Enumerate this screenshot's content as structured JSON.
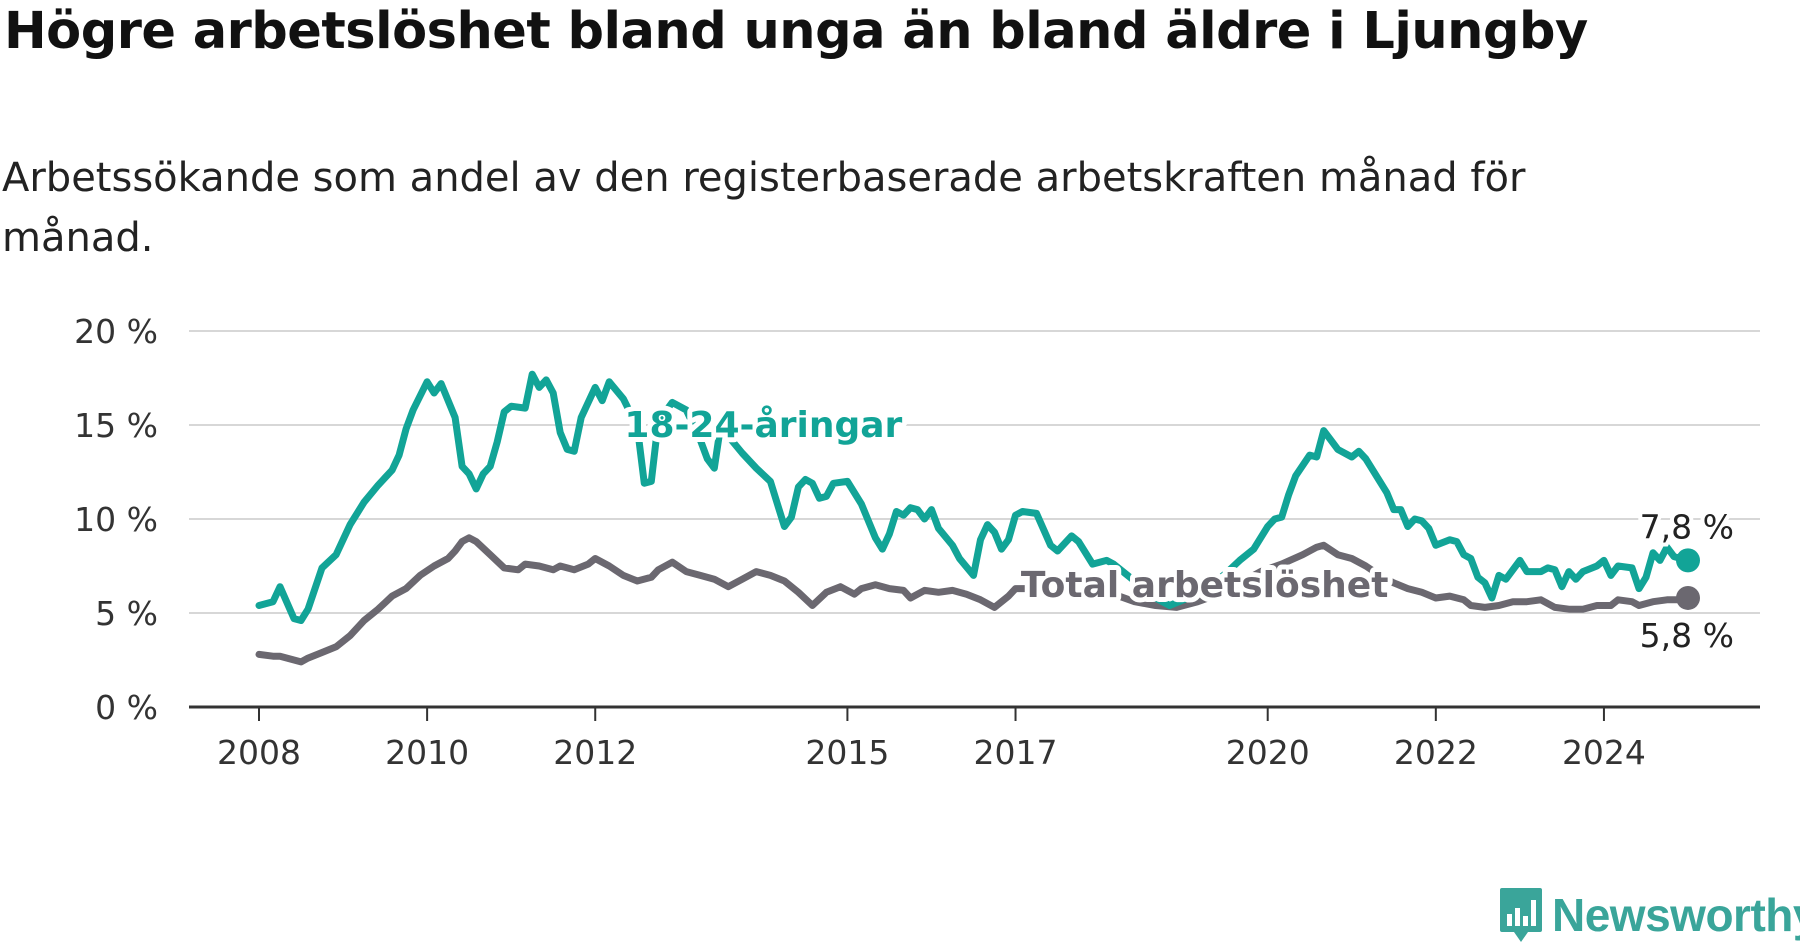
{
  "title": "Högre arbetslöshet bland unga än bland äldre i Ljungby",
  "subtitle": "Arbetssökande som andel av den registerbaserade arbetskraften månad för månad.",
  "logo_text": "Newsworthy",
  "colors": {
    "youth": "#12a497",
    "total": "#6b6870",
    "grid": "#d7d7d7",
    "axis": "#333333"
  },
  "chart_data": {
    "type": "line",
    "y_unit": "%",
    "ylim": [
      0,
      20
    ],
    "y_ticks": [
      0,
      5,
      10,
      15,
      20
    ],
    "y_tick_labels": [
      "0 %",
      "5 %",
      "10 %",
      "15 %",
      "20 %"
    ],
    "x_range": [
      "2008-01",
      "2025-01"
    ],
    "x_tick_labels": [
      "2008",
      "2010",
      "2012",
      "2015",
      "2017",
      "2020",
      "2022",
      "2024"
    ],
    "grid": true,
    "series": [
      {
        "name": "18-24-åringar",
        "end_label": "7,8 %",
        "points": [
          [
            "2008-01",
            5.4
          ],
          [
            "2008-03",
            5.6
          ],
          [
            "2008-04",
            6.4
          ],
          [
            "2008-06",
            4.7
          ],
          [
            "2008-07",
            4.6
          ],
          [
            "2008-08",
            5.2
          ],
          [
            "2008-10",
            7.4
          ],
          [
            "2008-12",
            8.1
          ],
          [
            "2009-02",
            9.7
          ],
          [
            "2009-04",
            10.9
          ],
          [
            "2009-06",
            11.8
          ],
          [
            "2009-08",
            12.6
          ],
          [
            "2009-09",
            13.4
          ],
          [
            "2009-10",
            14.8
          ],
          [
            "2009-11",
            15.8
          ],
          [
            "2010-01",
            17.3
          ],
          [
            "2010-02",
            16.7
          ],
          [
            "2010-03",
            17.2
          ],
          [
            "2010-05",
            15.4
          ],
          [
            "2010-06",
            12.8
          ],
          [
            "2010-07",
            12.4
          ],
          [
            "2010-08",
            11.6
          ],
          [
            "2010-09",
            12.4
          ],
          [
            "2010-10",
            12.8
          ],
          [
            "2010-11",
            14.1
          ],
          [
            "2010-12",
            15.7
          ],
          [
            "2011-01",
            16.0
          ],
          [
            "2011-03",
            15.9
          ],
          [
            "2011-04",
            17.7
          ],
          [
            "2011-05",
            17.0
          ],
          [
            "2011-06",
            17.4
          ],
          [
            "2011-07",
            16.7
          ],
          [
            "2011-08",
            14.6
          ],
          [
            "2011-09",
            13.7
          ],
          [
            "2011-10",
            13.6
          ],
          [
            "2011-11",
            15.4
          ],
          [
            "2012-01",
            17.0
          ],
          [
            "2012-02",
            16.3
          ],
          [
            "2012-03",
            17.3
          ],
          [
            "2012-05",
            16.4
          ],
          [
            "2012-07",
            14.9
          ],
          [
            "2012-08",
            11.9
          ],
          [
            "2012-09",
            12.0
          ],
          [
            "2012-10",
            15.2
          ],
          [
            "2012-12",
            16.2
          ],
          [
            "2013-02",
            15.8
          ],
          [
            "2013-04",
            14.2
          ],
          [
            "2013-05",
            13.2
          ],
          [
            "2013-06",
            12.7
          ],
          [
            "2013-07",
            15.2
          ],
          [
            "2013-08",
            14.4
          ],
          [
            "2013-10",
            13.5
          ],
          [
            "2013-12",
            12.7
          ],
          [
            "2014-02",
            12.0
          ],
          [
            "2014-03",
            10.8
          ],
          [
            "2014-04",
            9.6
          ],
          [
            "2014-05",
            10.1
          ],
          [
            "2014-06",
            11.7
          ],
          [
            "2014-07",
            12.1
          ],
          [
            "2014-08",
            11.9
          ],
          [
            "2014-09",
            11.1
          ],
          [
            "2014-10",
            11.2
          ],
          [
            "2014-11",
            11.9
          ],
          [
            "2015-01",
            12.0
          ],
          [
            "2015-03",
            10.8
          ],
          [
            "2015-05",
            9.0
          ],
          [
            "2015-06",
            8.4
          ],
          [
            "2015-07",
            9.2
          ],
          [
            "2015-08",
            10.4
          ],
          [
            "2015-09",
            10.2
          ],
          [
            "2015-10",
            10.6
          ],
          [
            "2015-11",
            10.5
          ],
          [
            "2015-12",
            10.0
          ],
          [
            "2016-01",
            10.5
          ],
          [
            "2016-02",
            9.5
          ],
          [
            "2016-04",
            8.6
          ],
          [
            "2016-05",
            7.9
          ],
          [
            "2016-07",
            7.0
          ],
          [
            "2016-08",
            8.9
          ],
          [
            "2016-09",
            9.7
          ],
          [
            "2016-10",
            9.3
          ],
          [
            "2016-11",
            8.4
          ],
          [
            "2016-12",
            8.9
          ],
          [
            "2017-01",
            10.2
          ],
          [
            "2017-02",
            10.4
          ],
          [
            "2017-04",
            10.3
          ],
          [
            "2017-06",
            8.6
          ],
          [
            "2017-07",
            8.3
          ],
          [
            "2017-09",
            9.1
          ],
          [
            "2017-10",
            8.8
          ],
          [
            "2017-12",
            7.6
          ],
          [
            "2018-02",
            7.8
          ],
          [
            "2018-03",
            7.6
          ],
          [
            "2018-05",
            7.0
          ],
          [
            "2018-07",
            6.4
          ],
          [
            "2018-09",
            5.8
          ],
          [
            "2018-11",
            5.4
          ],
          [
            "2019-01",
            5.7
          ],
          [
            "2019-03",
            6.1
          ],
          [
            "2019-05",
            6.5
          ],
          [
            "2019-07",
            7.1
          ],
          [
            "2019-09",
            7.8
          ],
          [
            "2019-11",
            8.4
          ],
          [
            "2020-01",
            9.6
          ],
          [
            "2020-02",
            10.0
          ],
          [
            "2020-03",
            10.1
          ],
          [
            "2020-04",
            11.3
          ],
          [
            "2020-05",
            12.3
          ],
          [
            "2020-07",
            13.4
          ],
          [
            "2020-08",
            13.3
          ],
          [
            "2020-09",
            14.7
          ],
          [
            "2020-10",
            14.2
          ],
          [
            "2020-11",
            13.7
          ],
          [
            "2021-01",
            13.3
          ],
          [
            "2021-02",
            13.6
          ],
          [
            "2021-03",
            13.2
          ],
          [
            "2021-05",
            12.0
          ],
          [
            "2021-06",
            11.4
          ],
          [
            "2021-07",
            10.5
          ],
          [
            "2021-08",
            10.5
          ],
          [
            "2021-09",
            9.6
          ],
          [
            "2021-10",
            10.0
          ],
          [
            "2021-11",
            9.9
          ],
          [
            "2021-12",
            9.5
          ],
          [
            "2022-01",
            8.6
          ],
          [
            "2022-03",
            8.9
          ],
          [
            "2022-04",
            8.8
          ],
          [
            "2022-05",
            8.1
          ],
          [
            "2022-06",
            7.9
          ],
          [
            "2022-07",
            6.9
          ],
          [
            "2022-08",
            6.6
          ],
          [
            "2022-09",
            5.8
          ],
          [
            "2022-10",
            7.0
          ],
          [
            "2022-11",
            6.8
          ],
          [
            "2023-01",
            7.8
          ],
          [
            "2023-02",
            7.2
          ],
          [
            "2023-04",
            7.2
          ],
          [
            "2023-05",
            7.4
          ],
          [
            "2023-06",
            7.3
          ],
          [
            "2023-07",
            6.4
          ],
          [
            "2023-08",
            7.2
          ],
          [
            "2023-09",
            6.8
          ],
          [
            "2023-10",
            7.2
          ],
          [
            "2023-12",
            7.5
          ],
          [
            "2024-01",
            7.8
          ],
          [
            "2024-02",
            7.0
          ],
          [
            "2024-03",
            7.5
          ],
          [
            "2024-05",
            7.4
          ],
          [
            "2024-06",
            6.3
          ],
          [
            "2024-07",
            6.9
          ],
          [
            "2024-08",
            8.2
          ],
          [
            "2024-09",
            7.8
          ],
          [
            "2024-10",
            8.5
          ],
          [
            "2024-11",
            8.0
          ],
          [
            "2025-01",
            7.8
          ]
        ]
      },
      {
        "name": "Total arbetslöshet",
        "end_label": "5,8 %",
        "points": [
          [
            "2008-01",
            2.8
          ],
          [
            "2008-03",
            2.7
          ],
          [
            "2008-04",
            2.7
          ],
          [
            "2008-06",
            2.5
          ],
          [
            "2008-07",
            2.4
          ],
          [
            "2008-08",
            2.6
          ],
          [
            "2008-10",
            2.9
          ],
          [
            "2008-12",
            3.2
          ],
          [
            "2009-02",
            3.8
          ],
          [
            "2009-04",
            4.6
          ],
          [
            "2009-06",
            5.2
          ],
          [
            "2009-08",
            5.9
          ],
          [
            "2009-10",
            6.3
          ],
          [
            "2009-12",
            7.0
          ],
          [
            "2010-02",
            7.5
          ],
          [
            "2010-04",
            7.9
          ],
          [
            "2010-05",
            8.3
          ],
          [
            "2010-06",
            8.8
          ],
          [
            "2010-07",
            9.0
          ],
          [
            "2010-08",
            8.8
          ],
          [
            "2010-10",
            8.1
          ],
          [
            "2010-12",
            7.4
          ],
          [
            "2011-02",
            7.3
          ],
          [
            "2011-03",
            7.6
          ],
          [
            "2011-05",
            7.5
          ],
          [
            "2011-07",
            7.3
          ],
          [
            "2011-08",
            7.5
          ],
          [
            "2011-10",
            7.3
          ],
          [
            "2011-12",
            7.6
          ],
          [
            "2012-01",
            7.9
          ],
          [
            "2012-03",
            7.5
          ],
          [
            "2012-05",
            7.0
          ],
          [
            "2012-07",
            6.7
          ],
          [
            "2012-09",
            6.9
          ],
          [
            "2012-10",
            7.3
          ],
          [
            "2012-12",
            7.7
          ],
          [
            "2013-02",
            7.2
          ],
          [
            "2013-04",
            7.0
          ],
          [
            "2013-06",
            6.8
          ],
          [
            "2013-08",
            6.4
          ],
          [
            "2013-10",
            6.8
          ],
          [
            "2013-12",
            7.2
          ],
          [
            "2014-02",
            7.0
          ],
          [
            "2014-04",
            6.7
          ],
          [
            "2014-06",
            6.1
          ],
          [
            "2014-08",
            5.4
          ],
          [
            "2014-10",
            6.1
          ],
          [
            "2014-12",
            6.4
          ],
          [
            "2015-02",
            6.0
          ],
          [
            "2015-03",
            6.3
          ],
          [
            "2015-05",
            6.5
          ],
          [
            "2015-07",
            6.3
          ],
          [
            "2015-09",
            6.2
          ],
          [
            "2015-10",
            5.8
          ],
          [
            "2015-12",
            6.2
          ],
          [
            "2016-02",
            6.1
          ],
          [
            "2016-04",
            6.2
          ],
          [
            "2016-06",
            6.0
          ],
          [
            "2016-08",
            5.7
          ],
          [
            "2016-10",
            5.3
          ],
          [
            "2016-12",
            5.9
          ],
          [
            "2017-01",
            6.3
          ],
          [
            "2017-03",
            6.3
          ],
          [
            "2017-06",
            6.8
          ],
          [
            "2017-09",
            6.5
          ],
          [
            "2017-12",
            6.2
          ],
          [
            "2018-03",
            6.0
          ],
          [
            "2018-06",
            5.6
          ],
          [
            "2018-09",
            5.4
          ],
          [
            "2018-12",
            5.3
          ],
          [
            "2019-03",
            5.6
          ],
          [
            "2019-06",
            6.0
          ],
          [
            "2019-09",
            6.6
          ],
          [
            "2019-12",
            7.2
          ],
          [
            "2020-03",
            7.6
          ],
          [
            "2020-06",
            8.1
          ],
          [
            "2020-08",
            8.5
          ],
          [
            "2020-09",
            8.6
          ],
          [
            "2020-11",
            8.1
          ],
          [
            "2021-01",
            7.9
          ],
          [
            "2021-03",
            7.5
          ],
          [
            "2021-05",
            7.0
          ],
          [
            "2021-07",
            6.6
          ],
          [
            "2021-09",
            6.3
          ],
          [
            "2021-11",
            6.1
          ],
          [
            "2022-01",
            5.8
          ],
          [
            "2022-03",
            5.9
          ],
          [
            "2022-05",
            5.7
          ],
          [
            "2022-06",
            5.4
          ],
          [
            "2022-08",
            5.3
          ],
          [
            "2022-10",
            5.4
          ],
          [
            "2022-12",
            5.6
          ],
          [
            "2023-02",
            5.6
          ],
          [
            "2023-04",
            5.7
          ],
          [
            "2023-06",
            5.3
          ],
          [
            "2023-08",
            5.2
          ],
          [
            "2023-10",
            5.2
          ],
          [
            "2023-12",
            5.4
          ],
          [
            "2024-02",
            5.4
          ],
          [
            "2024-03",
            5.7
          ],
          [
            "2024-05",
            5.6
          ],
          [
            "2024-06",
            5.4
          ],
          [
            "2024-08",
            5.6
          ],
          [
            "2024-10",
            5.7
          ],
          [
            "2024-12",
            5.7
          ],
          [
            "2025-01",
            5.8
          ]
        ]
      }
    ],
    "annotations": [
      {
        "text": "18-24-åringar",
        "series": "18-24-åringar",
        "x": "2014-01",
        "y": 15.0
      },
      {
        "text": "Total arbetslöshet",
        "series": "Total arbetslöshet",
        "x": "2019-04",
        "y": 6.5
      }
    ]
  }
}
